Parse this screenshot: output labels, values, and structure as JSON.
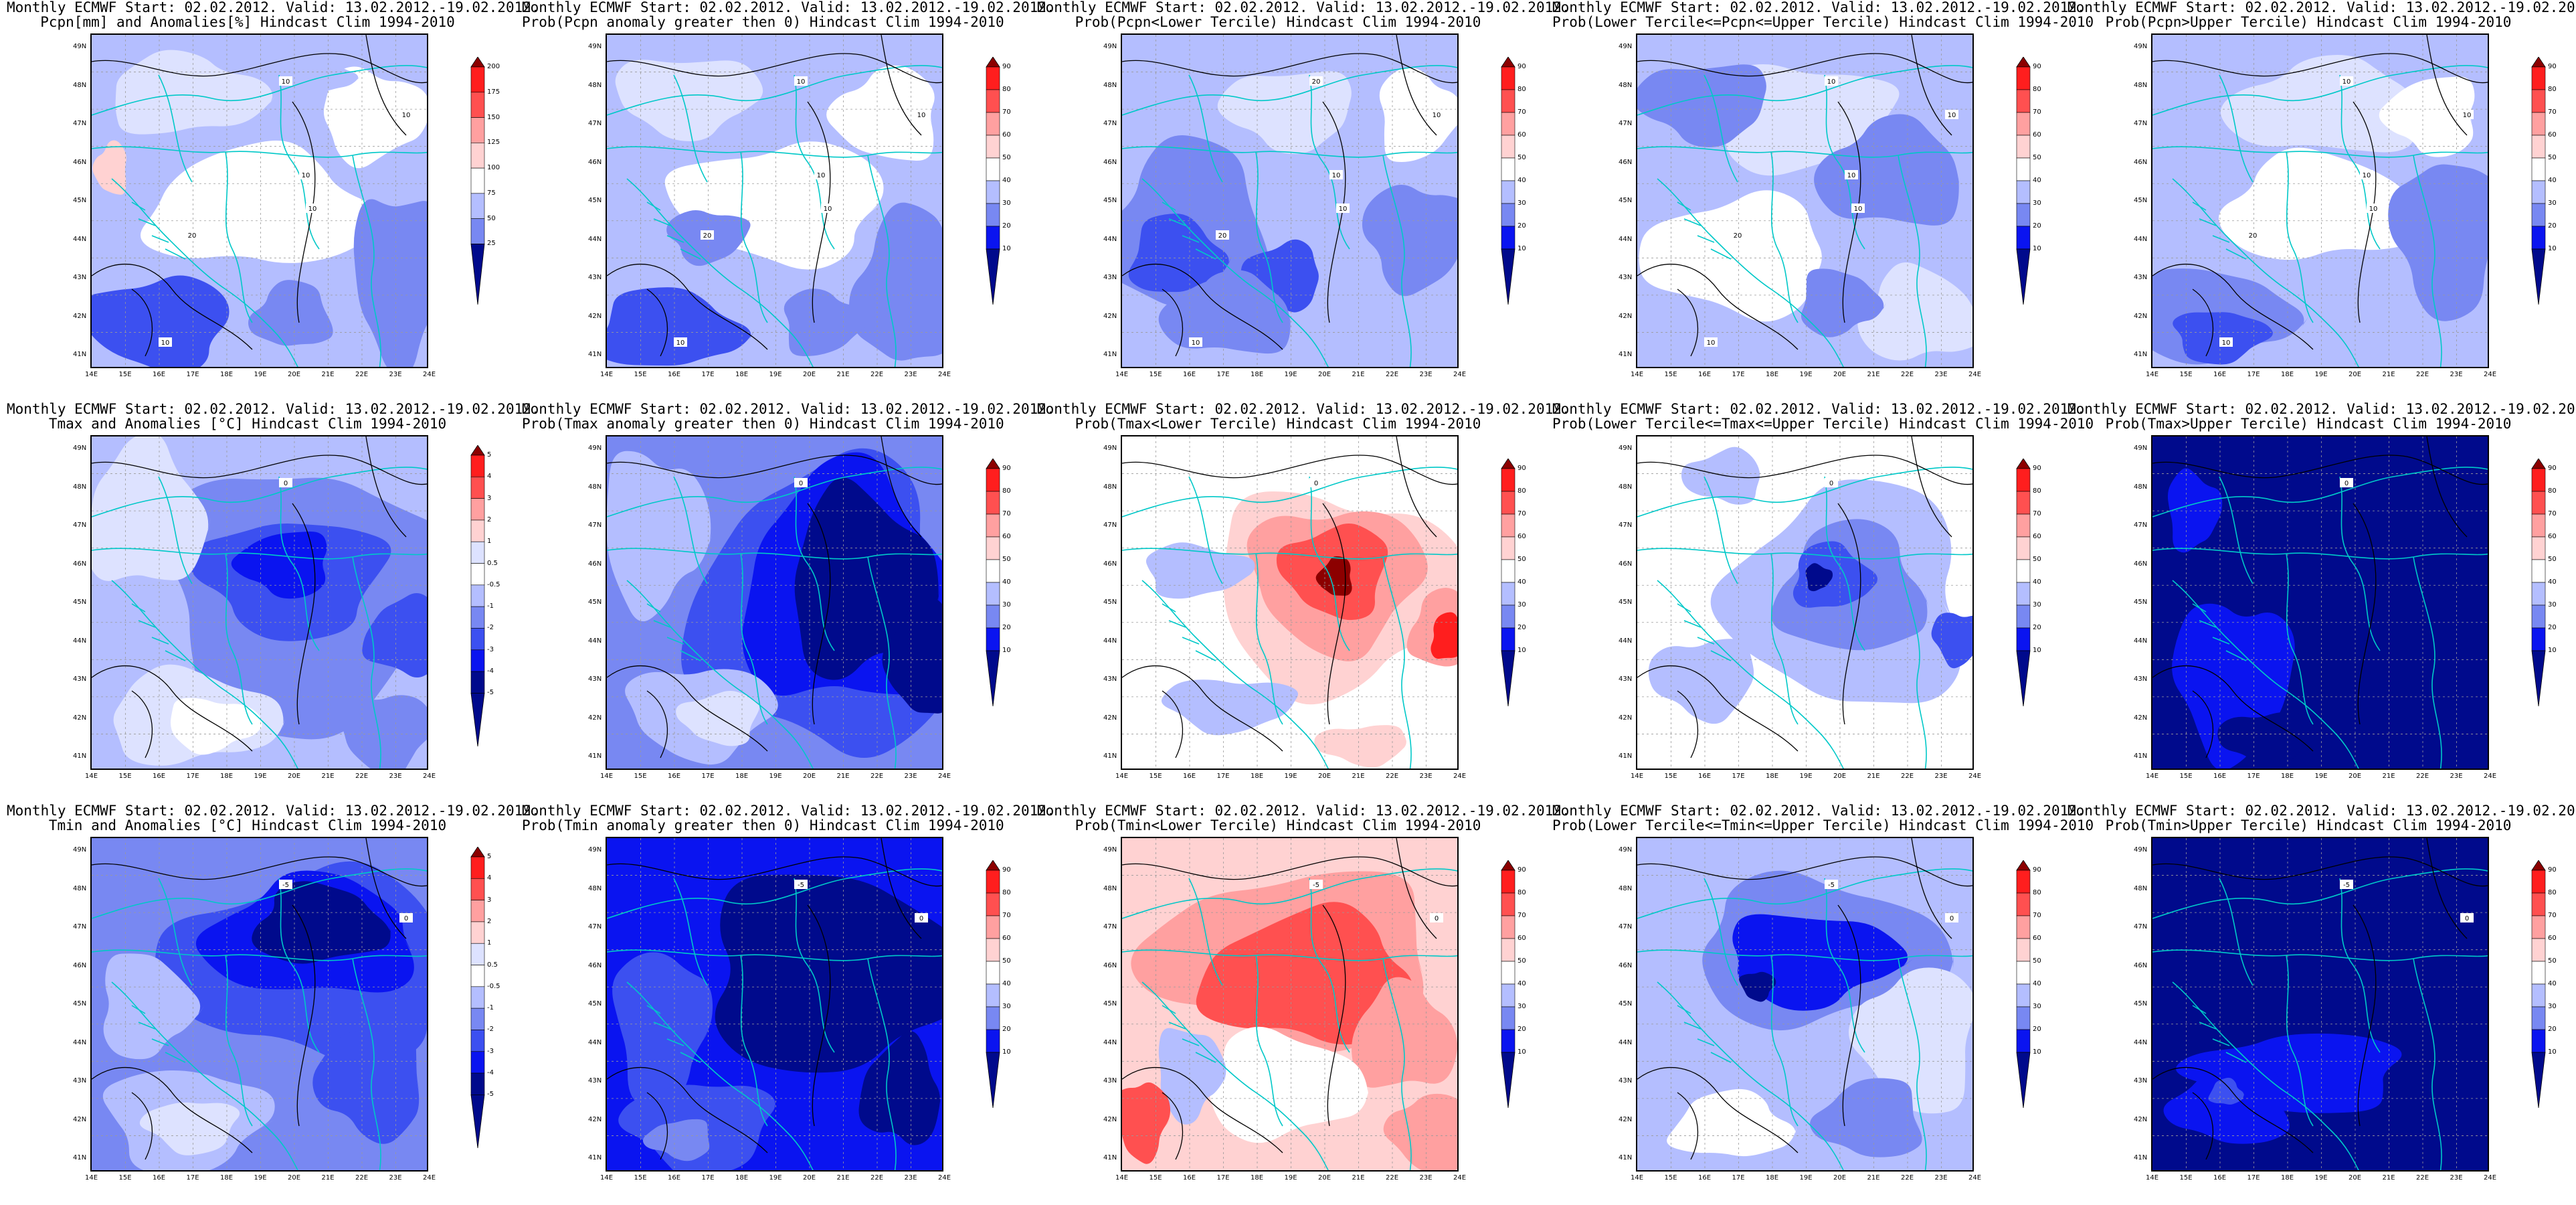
{
  "header_line": "Monthly ECMWF Start: 02.02.2012. Valid: 13.02.2012.-19.02.2012.",
  "lon_ticks": [
    "14E",
    "15E",
    "16E",
    "17E",
    "18E",
    "19E",
    "20E",
    "21E",
    "22E",
    "23E",
    "24E"
  ],
  "lat_ticks": [
    "49N",
    "48N",
    "47N",
    "46N",
    "45N",
    "44N",
    "43N",
    "42N",
    "41N"
  ],
  "scales": {
    "pcpn_anom": [
      "200",
      "175",
      "150",
      "125",
      "100",
      "75",
      "50",
      "25"
    ],
    "temp_anom": [
      "5",
      "4",
      "3",
      "2",
      "1",
      "0.5",
      "-0.5",
      "-1",
      "-2",
      "-3",
      "-4",
      "-5"
    ],
    "prob": [
      "90",
      "80",
      "70",
      "60",
      "50",
      "40",
      "30",
      "20",
      "10"
    ]
  },
  "colors": {
    "dark_blue": "#000a8c",
    "blue": "#0a14f0",
    "mid_blue": "#3c50f0",
    "light_blue": "#7888f2",
    "pale_blue": "#b4beff",
    "very_pale_blue": "#dde2ff",
    "white": "#ffffff",
    "pale_red": "#ffd2d2",
    "light_red": "#ffa0a0",
    "red": "#ff5050",
    "deep_red": "#ff1e1e",
    "dark_red": "#8c0000",
    "contour": "#000000",
    "coast": "#00c8c8"
  },
  "panels": [
    {
      "row": 0,
      "col": 0,
      "subtitle": "Pcpn[mm] and Anomalies[%] Hindcast Clim 1994-2010",
      "scale": "pcpn_anom",
      "theme": "pcpn_anom",
      "labels": [
        "10",
        "10",
        "10",
        "10",
        "20",
        "10"
      ]
    },
    {
      "row": 0,
      "col": 1,
      "subtitle": "Prob(Pcpn anomaly greater then 0) Hindcast Clim 1994-2010",
      "scale": "prob",
      "theme": "pcpn_prob",
      "labels": [
        "10",
        "10",
        "10",
        "10",
        "20",
        "10"
      ]
    },
    {
      "row": 0,
      "col": 2,
      "subtitle": "Prob(Pcpn<Lower Tercile) Hindcast Clim 1994-2010",
      "scale": "prob",
      "theme": "pcpn_lower",
      "labels": [
        "20",
        "10",
        "10",
        "10",
        "20",
        "10"
      ]
    },
    {
      "row": 0,
      "col": 3,
      "subtitle": "Prob(Lower Tercile<=Pcpn<=Upper Tercile) Hindcast Clim 1994-2010",
      "scale": "prob",
      "theme": "pcpn_mid",
      "labels": [
        "10",
        "10",
        "10",
        "10",
        "20",
        "10"
      ]
    },
    {
      "row": 0,
      "col": 4,
      "subtitle": "Prob(Pcpn>Upper Tercile) Hindcast Clim 1994-2010",
      "scale": "prob",
      "theme": "pcpn_upper",
      "labels": [
        "10",
        "10",
        "10",
        "10",
        "20",
        "10"
      ]
    },
    {
      "row": 1,
      "col": 0,
      "subtitle": "Tmax and Anomalies [°C] Hindcast Clim 1994-2010",
      "scale": "temp_anom",
      "theme": "tmax_anom",
      "labels": [
        "0"
      ]
    },
    {
      "row": 1,
      "col": 1,
      "subtitle": "Prob(Tmax anomaly greater then 0) Hindcast Clim 1994-2010",
      "scale": "prob",
      "theme": "tmax_prob",
      "labels": [
        "0"
      ]
    },
    {
      "row": 1,
      "col": 2,
      "subtitle": "Prob(Tmax<Lower Tercile) Hindcast Clim 1994-2010",
      "scale": "prob",
      "theme": "tmax_lower",
      "labels": [
        "0"
      ]
    },
    {
      "row": 1,
      "col": 3,
      "subtitle": "Prob(Lower Tercile<=Tmax<=Upper Tercile) Hindcast Clim 1994-2010",
      "scale": "prob",
      "theme": "tmax_mid",
      "labels": [
        "0"
      ]
    },
    {
      "row": 1,
      "col": 4,
      "subtitle": "Prob(Tmax>Upper Tercile) Hindcast Clim 1994-2010",
      "scale": "prob",
      "theme": "tmax_upper",
      "labels": [
        "0"
      ]
    },
    {
      "row": 2,
      "col": 0,
      "subtitle": "Tmin and Anomalies [°C] Hindcast Clim 1994-2010",
      "scale": "temp_anom",
      "theme": "tmin_anom",
      "labels": [
        "-5",
        "0"
      ]
    },
    {
      "row": 2,
      "col": 1,
      "subtitle": "Prob(Tmin anomaly greater then 0) Hindcast Clim 1994-2010",
      "scale": "prob",
      "theme": "tmin_prob",
      "labels": [
        "-5",
        "0"
      ]
    },
    {
      "row": 2,
      "col": 2,
      "subtitle": "Prob(Tmin<Lower Tercile) Hindcast Clim 1994-2010",
      "scale": "prob",
      "theme": "tmin_lower",
      "labels": [
        "-5",
        "0"
      ]
    },
    {
      "row": 2,
      "col": 3,
      "subtitle": "Prob(Lower Tercile<=Tmin<=Upper Tercile) Hindcast Clim 1994-2010",
      "scale": "prob",
      "theme": "tmin_mid",
      "labels": [
        "-5",
        "0"
      ]
    },
    {
      "row": 2,
      "col": 4,
      "subtitle": "Prob(Tmin>Upper Tercile) Hindcast Clim 1994-2010",
      "scale": "prob",
      "theme": "tmin_upper",
      "labels": [
        "-5",
        "0"
      ]
    }
  ]
}
